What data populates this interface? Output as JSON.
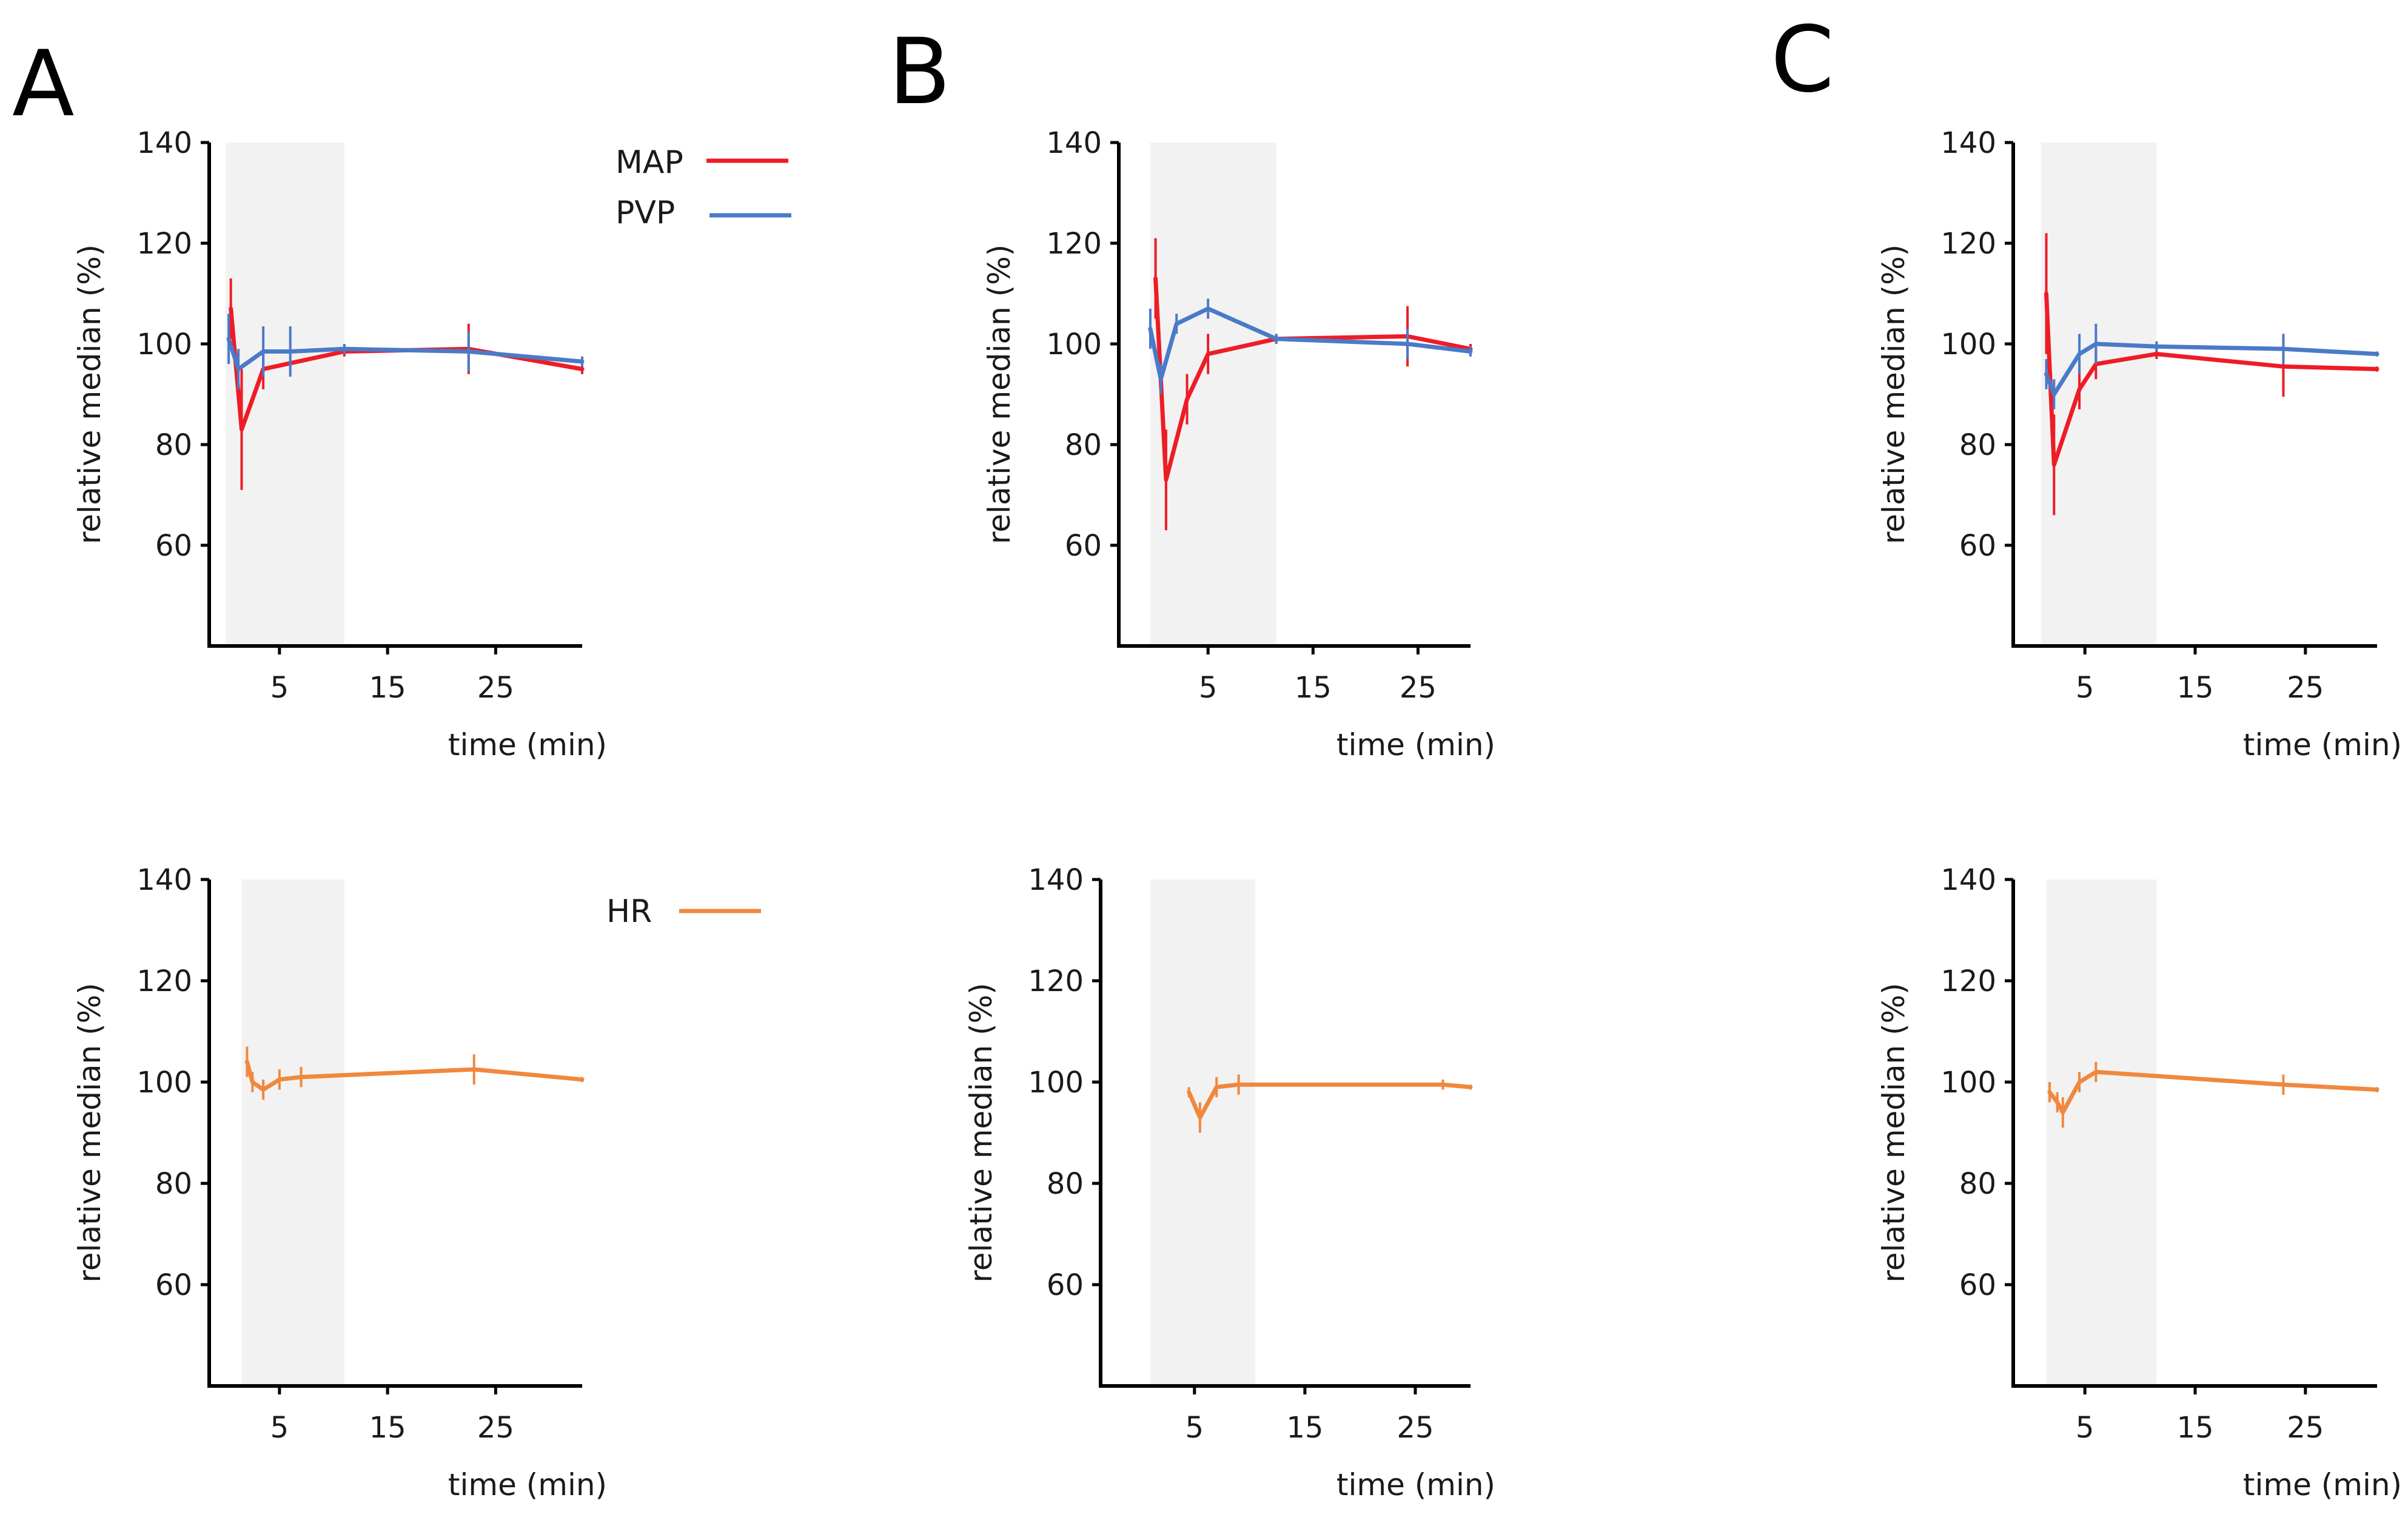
{
  "figure": {
    "panel_letters": [
      "A",
      "B",
      "C"
    ]
  },
  "colors": {
    "MAP": "#ee1c25",
    "PVP": "#4a7ac8",
    "HR": "#f0883e",
    "shade": "#f2f2f2"
  },
  "legends": {
    "top": [
      {
        "label": "MAP",
        "color_key": "MAP"
      },
      {
        "label": "PVP",
        "color_key": "PVP"
      }
    ],
    "bottom": [
      {
        "label": "HR",
        "color_key": "HR"
      }
    ]
  },
  "chart_data": [
    {
      "id": "A-top",
      "panel": "A",
      "row": "top",
      "type": "line",
      "xlabel": "time (min)",
      "ylabel": "relative median (%)",
      "xlim": [
        -1.5,
        33
      ],
      "ylim": [
        40,
        140
      ],
      "xticks": [
        5,
        15,
        25
      ],
      "yticks": [
        60,
        80,
        100,
        120,
        140
      ],
      "shade": [
        0,
        11
      ],
      "series": [
        {
          "name": "MAP",
          "color_key": "MAP",
          "x": [
            0.5,
            1.5,
            3.5,
            11,
            22.5,
            33
          ],
          "y": [
            107,
            83,
            95,
            98.5,
            99,
            95
          ],
          "err": [
            6,
            12,
            4,
            1,
            5,
            1
          ]
        },
        {
          "name": "PVP",
          "color_key": "PVP",
          "x": [
            0.3,
            1.2,
            3.5,
            6,
            11,
            22.5,
            33
          ],
          "y": [
            101,
            95,
            98.5,
            98.5,
            99,
            98.5,
            96.5
          ],
          "err": [
            5,
            4,
            5,
            5,
            1,
            4,
            1
          ]
        }
      ]
    },
    {
      "id": "A-bottom",
      "panel": "A",
      "row": "bottom",
      "type": "line",
      "xlabel": "time (min)",
      "ylabel": "relative median (%)",
      "xlim": [
        -1.5,
        33
      ],
      "ylim": [
        40,
        140
      ],
      "xticks": [
        5,
        15,
        25
      ],
      "yticks": [
        60,
        80,
        100,
        120,
        140
      ],
      "shade": [
        1.5,
        11
      ],
      "series": [
        {
          "name": "HR",
          "color_key": "HR",
          "x": [
            2,
            2.5,
            3.5,
            5,
            7,
            23,
            33
          ],
          "y": [
            104,
            100,
            98.5,
            100.5,
            101,
            102.5,
            100.5
          ],
          "err": [
            3,
            2,
            2,
            2,
            2,
            3,
            0.5
          ]
        }
      ]
    },
    {
      "id": "B-top",
      "panel": "B",
      "row": "top",
      "type": "line",
      "xlabel": "time (min)",
      "ylabel": "relative median (%)",
      "xlim": [
        -3.5,
        30
      ],
      "ylim": [
        40,
        140
      ],
      "xticks": [
        5,
        15,
        25
      ],
      "yticks": [
        60,
        80,
        100,
        120,
        140
      ],
      "shade": [
        -0.5,
        11.5
      ],
      "series": [
        {
          "name": "MAP",
          "color_key": "MAP",
          "x": [
            0,
            1,
            3,
            5,
            11.5,
            24,
            30
          ],
          "y": [
            113,
            73,
            89,
            98,
            101,
            101.5,
            99
          ],
          "err": [
            8,
            10,
            5,
            4,
            1,
            6,
            1
          ]
        },
        {
          "name": "PVP",
          "color_key": "PVP",
          "x": [
            -0.5,
            0.5,
            2,
            5,
            11.5,
            24,
            30
          ],
          "y": [
            103,
            93,
            104,
            107,
            101,
            100,
            98.5
          ],
          "err": [
            4,
            3,
            2,
            2,
            1,
            3,
            1
          ]
        }
      ]
    },
    {
      "id": "B-bottom",
      "panel": "B",
      "row": "bottom",
      "type": "line",
      "xlabel": "time (min)",
      "ylabel": "relative median (%)",
      "xlim": [
        -3.5,
        30
      ],
      "ylim": [
        40,
        140
      ],
      "xticks": [
        5,
        15,
        25
      ],
      "yticks": [
        60,
        80,
        100,
        120,
        140
      ],
      "shade": [
        1,
        10.5
      ],
      "series": [
        {
          "name": "HR",
          "color_key": "HR",
          "x": [
            4.5,
            5.5,
            7,
            9,
            27.5,
            30
          ],
          "y": [
            98,
            93,
            99,
            99.5,
            99.5,
            99
          ],
          "err": [
            1,
            3,
            2,
            2,
            1,
            0.5
          ]
        }
      ]
    },
    {
      "id": "C-top",
      "panel": "C",
      "row": "top",
      "type": "line",
      "xlabel": "time (min)",
      "ylabel": "relative median (%)",
      "xlim": [
        -1.5,
        31.5
      ],
      "ylim": [
        40,
        140
      ],
      "xticks": [
        5,
        15,
        25
      ],
      "yticks": [
        60,
        80,
        100,
        120,
        140
      ],
      "shade": [
        1,
        11.5
      ],
      "series": [
        {
          "name": "MAP",
          "color_key": "MAP",
          "x": [
            1.5,
            2.2,
            4.5,
            6,
            11.5,
            23,
            31.5
          ],
          "y": [
            110,
            76,
            91,
            96,
            98,
            95.5,
            95
          ],
          "err": [
            12,
            10,
            4,
            3,
            1,
            6,
            0.5
          ]
        },
        {
          "name": "PVP",
          "color_key": "PVP",
          "x": [
            1.5,
            2.2,
            4.5,
            6,
            11.5,
            23,
            31.5
          ],
          "y": [
            94,
            90,
            98,
            100,
            99.5,
            99,
            98
          ],
          "err": [
            3,
            3,
            4,
            4,
            1,
            3,
            0.5
          ]
        }
      ]
    },
    {
      "id": "C-bottom",
      "panel": "C",
      "row": "bottom",
      "type": "line",
      "xlabel": "time (min)",
      "ylabel": "relative median (%)",
      "xlim": [
        -1.5,
        31.5
      ],
      "ylim": [
        40,
        140
      ],
      "xticks": [
        5,
        15,
        25
      ],
      "yticks": [
        60,
        80,
        100,
        120,
        140
      ],
      "shade": [
        1.5,
        11.5
      ],
      "series": [
        {
          "name": "HR",
          "color_key": "HR",
          "x": [
            1.8,
            2.5,
            3,
            4.5,
            6,
            23,
            31.5
          ],
          "y": [
            98,
            96,
            94,
            100,
            102,
            99.5,
            98.5
          ],
          "err": [
            2,
            2,
            3,
            2,
            2,
            2,
            0.5
          ]
        }
      ]
    }
  ]
}
